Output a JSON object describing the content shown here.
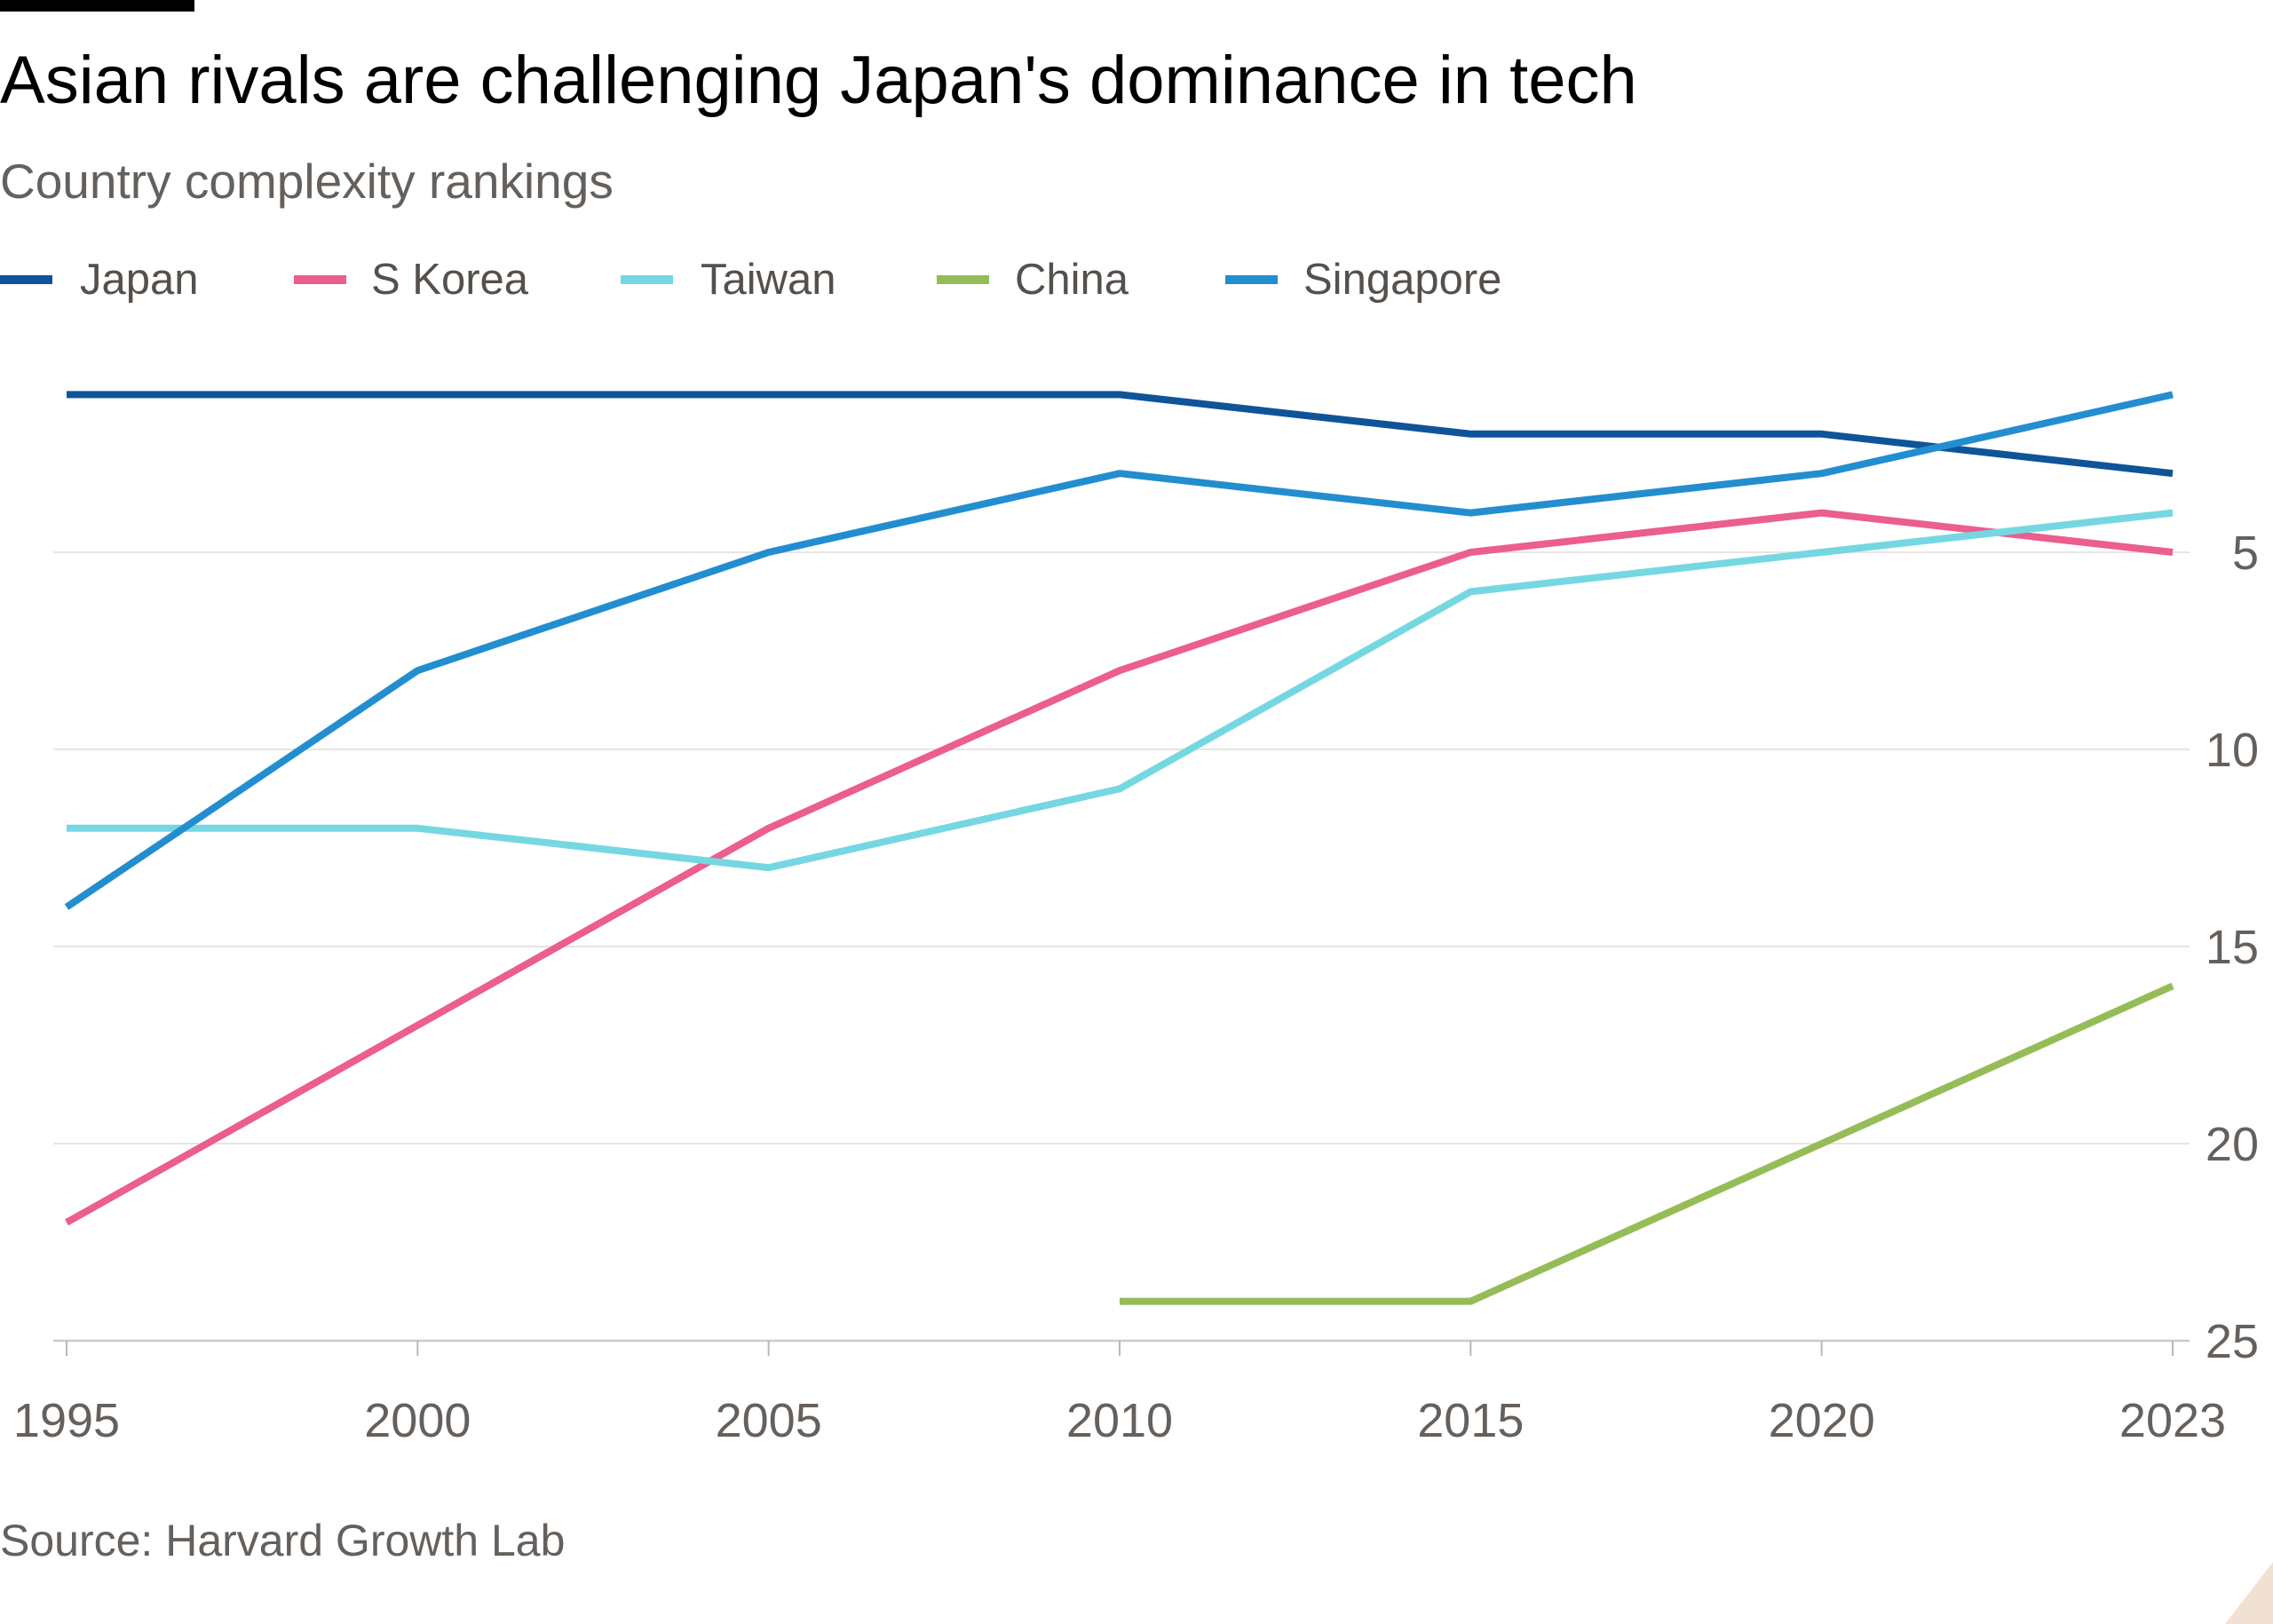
{
  "chart_data": {
    "type": "line",
    "title": "Asian rivals are challenging Japan's dominance in tech",
    "subtitle": "Country complexity rankings",
    "source": "Source: Harvard Growth Lab",
    "categories": [
      "1995",
      "2000",
      "2005",
      "2010",
      "2015",
      "2020",
      "2023"
    ],
    "y_ticks": [
      5,
      10,
      15,
      20,
      25
    ],
    "ylim": [
      25,
      1
    ],
    "y_inverted": true,
    "y_axis_side": "right",
    "grid": true,
    "legend_position": "top-left",
    "series": [
      {
        "name": "Japan",
        "color": "#0f5499",
        "values": [
          1,
          1,
          1,
          1,
          2,
          2,
          3
        ]
      },
      {
        "name": "S Korea",
        "color": "#eb5e8d",
        "values": [
          22,
          17,
          12,
          8,
          5,
          4,
          5
        ]
      },
      {
        "name": "Taiwan",
        "color": "#75d7e2",
        "values": [
          12,
          12,
          13,
          11,
          6,
          5,
          4
        ]
      },
      {
        "name": "China",
        "color": "#96bc57",
        "values": [
          null,
          null,
          null,
          24,
          24,
          20,
          16
        ]
      },
      {
        "name": "Singapore",
        "color": "#238ecf",
        "values": [
          14,
          8,
          5,
          3,
          4,
          3,
          1
        ]
      }
    ]
  }
}
